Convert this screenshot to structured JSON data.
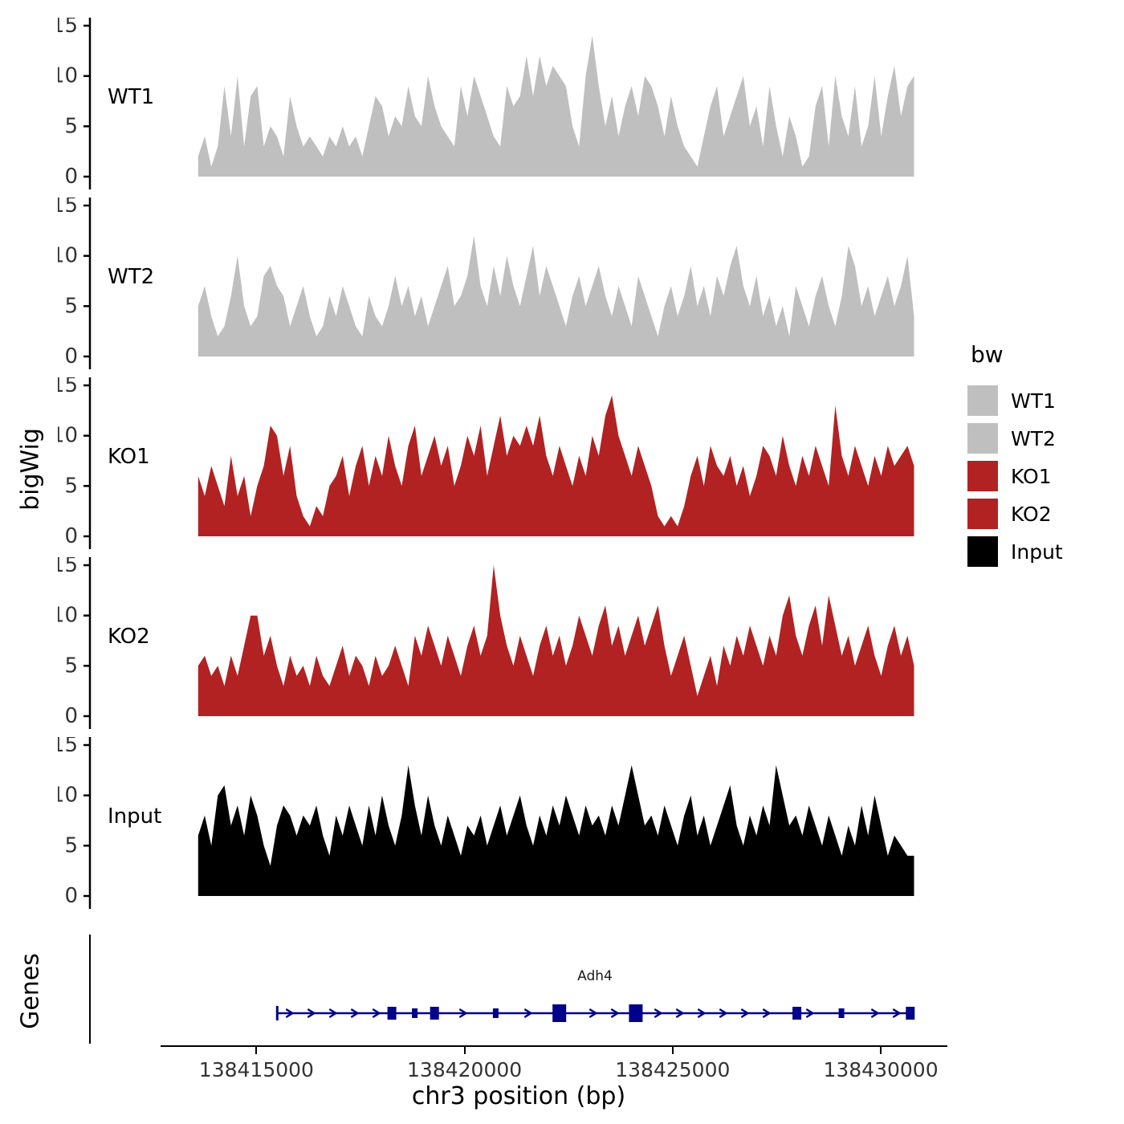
{
  "figure": {
    "y_axis_label": "bigWig",
    "genes_panel_label": "Genes",
    "x_axis_title": "chr3 position (bp)",
    "legend": {
      "title": "bw",
      "items": [
        {
          "label": "WT1",
          "color": "#bfbfbf"
        },
        {
          "label": "WT2",
          "color": "#bfbfbf"
        },
        {
          "label": "KO1",
          "color": "#b22222"
        },
        {
          "label": "KO2",
          "color": "#b22222"
        },
        {
          "label": "Input",
          "color": "#000000"
        }
      ]
    },
    "gene": {
      "name": "Adh4",
      "color": "#00008b"
    }
  },
  "chart_data": {
    "type": "area",
    "title": "",
    "xlabel": "chr3 position (bp)",
    "ylabel": "bigWig",
    "ylim": [
      0,
      15
    ],
    "y_ticks": [
      15,
      10,
      5,
      0
    ],
    "grid": false,
    "legend_position": "right",
    "x_domain_bp": [
      138411000,
      138431600
    ],
    "signal_range_bp": [
      138413600,
      138430800
    ],
    "x_ticks": [
      {
        "value": 138415000,
        "label": "138415000"
      },
      {
        "value": 138420000,
        "label": "138420000"
      },
      {
        "value": 138425000,
        "label": "138425000"
      },
      {
        "value": 138430000,
        "label": "138430000"
      }
    ],
    "series": [
      {
        "name": "WT1",
        "color": "#bfbfbf",
        "values": [
          2,
          4,
          1,
          3,
          9,
          4,
          10,
          3,
          8,
          9,
          3,
          5,
          4,
          2,
          8,
          5,
          3,
          4,
          3,
          2,
          4,
          3,
          5,
          3,
          4,
          2,
          5,
          8,
          7,
          4,
          6,
          5,
          9,
          6,
          5,
          10,
          7,
          5,
          4,
          3,
          9,
          6,
          10,
          8,
          6,
          4,
          3,
          9,
          7,
          8,
          12,
          8,
          12,
          9,
          11,
          10,
          9,
          5,
          3,
          10,
          14,
          9,
          5,
          8,
          4,
          7,
          9,
          6,
          10,
          9,
          7,
          4,
          8,
          5,
          3,
          2,
          1,
          4,
          7,
          9,
          4,
          6,
          8,
          10,
          5,
          7,
          3,
          9,
          5,
          2,
          6,
          4,
          1,
          2,
          7,
          9,
          3,
          10,
          6,
          4,
          9,
          3,
          5,
          10,
          4,
          8,
          11,
          6,
          9,
          10
        ]
      },
      {
        "name": "WT2",
        "color": "#bfbfbf",
        "values": [
          5,
          7,
          4,
          2,
          3,
          6,
          10,
          5,
          3,
          4,
          8,
          9,
          7,
          6,
          3,
          5,
          7,
          4,
          2,
          3,
          6,
          4,
          7,
          5,
          3,
          2,
          6,
          4,
          3,
          5,
          8,
          5,
          7,
          4,
          6,
          3,
          5,
          7,
          9,
          5,
          6,
          8,
          12,
          7,
          5,
          9,
          6,
          10,
          7,
          5,
          8,
          11,
          6,
          9,
          7,
          5,
          3,
          6,
          8,
          5,
          7,
          9,
          6,
          4,
          7,
          5,
          3,
          8,
          6,
          4,
          2,
          5,
          7,
          4,
          6,
          9,
          5,
          7,
          4,
          8,
          6,
          9,
          11,
          7,
          5,
          8,
          4,
          6,
          3,
          5,
          2,
          7,
          5,
          3,
          6,
          8,
          5,
          3,
          6,
          11,
          9,
          5,
          7,
          4,
          6,
          8,
          5,
          7,
          10,
          4
        ]
      },
      {
        "name": "KO1",
        "color": "#b22222",
        "values": [
          6,
          4,
          7,
          5,
          3,
          8,
          4,
          6,
          2,
          5,
          7,
          11,
          10,
          6,
          9,
          4,
          2,
          1,
          3,
          2,
          5,
          6,
          8,
          4,
          7,
          9,
          5,
          8,
          6,
          10,
          7,
          5,
          9,
          11,
          6,
          8,
          10,
          7,
          9,
          5,
          7,
          10,
          8,
          11,
          6,
          9,
          12,
          8,
          10,
          9,
          11,
          9,
          12,
          8,
          6,
          9,
          7,
          5,
          8,
          6,
          10,
          8,
          12,
          14,
          10,
          8,
          6,
          9,
          7,
          5,
          2,
          1,
          2,
          1,
          3,
          6,
          8,
          5,
          9,
          7,
          6,
          8,
          5,
          7,
          4,
          6,
          9,
          8,
          6,
          10,
          7,
          5,
          8,
          6,
          9,
          7,
          5,
          13,
          8,
          6,
          9,
          7,
          5,
          8,
          6,
          9,
          7,
          8,
          9,
          7
        ]
      },
      {
        "name": "KO2",
        "color": "#b22222",
        "values": [
          5,
          6,
          4,
          5,
          3,
          6,
          4,
          7,
          10,
          10,
          6,
          8,
          5,
          3,
          6,
          4,
          5,
          3,
          6,
          4,
          3,
          5,
          7,
          4,
          6,
          5,
          3,
          6,
          4,
          5,
          7,
          5,
          3,
          8,
          6,
          9,
          7,
          5,
          8,
          6,
          4,
          7,
          9,
          6,
          8,
          15,
          10,
          7,
          5,
          8,
          6,
          4,
          7,
          9,
          6,
          8,
          5,
          7,
          10,
          8,
          6,
          9,
          11,
          7,
          9,
          6,
          8,
          10,
          7,
          9,
          11,
          7,
          4,
          6,
          8,
          5,
          2,
          4,
          6,
          3,
          7,
          5,
          8,
          6,
          9,
          7,
          5,
          8,
          6,
          10,
          12,
          8,
          6,
          9,
          11,
          7,
          12,
          9,
          6,
          8,
          5,
          7,
          9,
          6,
          4,
          7,
          9,
          6,
          8,
          5
        ]
      },
      {
        "name": "Input",
        "color": "#000000",
        "values": [
          6,
          8,
          5,
          10,
          11,
          7,
          9,
          6,
          10,
          8,
          5,
          3,
          7,
          9,
          8,
          6,
          8,
          7,
          9,
          6,
          4,
          8,
          6,
          9,
          7,
          5,
          9,
          6,
          10,
          7,
          5,
          8,
          13,
          9,
          6,
          10,
          7,
          5,
          8,
          6,
          4,
          7,
          6,
          8,
          5,
          7,
          9,
          6,
          8,
          10,
          7,
          5,
          8,
          6,
          9,
          7,
          10,
          8,
          6,
          9,
          7,
          8,
          6,
          9,
          7,
          10,
          13,
          10,
          7,
          8,
          6,
          9,
          7,
          5,
          8,
          10,
          6,
          8,
          5,
          7,
          9,
          11,
          7,
          5,
          8,
          6,
          9,
          7,
          13,
          10,
          7,
          8,
          6,
          9,
          7,
          5,
          8,
          6,
          4,
          7,
          5,
          9,
          6,
          10,
          7,
          4,
          6,
          5,
          4,
          4
        ]
      }
    ],
    "gene_track": {
      "name": "Adh4",
      "chromosome": "chr3",
      "start_bp": 138415500,
      "end_bp": 138430800,
      "strand": "+",
      "color": "#00008b",
      "exons_frac": [
        {
          "frac": 0.18,
          "size": "m"
        },
        {
          "frac": 0.216,
          "size": "s"
        },
        {
          "frac": 0.247,
          "size": "m"
        },
        {
          "frac": 0.343,
          "size": "s"
        },
        {
          "frac": 0.443,
          "size": "l"
        },
        {
          "frac": 0.563,
          "size": "l"
        },
        {
          "frac": 0.816,
          "size": "m"
        },
        {
          "frac": 0.886,
          "size": "s"
        },
        {
          "frac": 0.994,
          "size": "m"
        }
      ]
    }
  }
}
